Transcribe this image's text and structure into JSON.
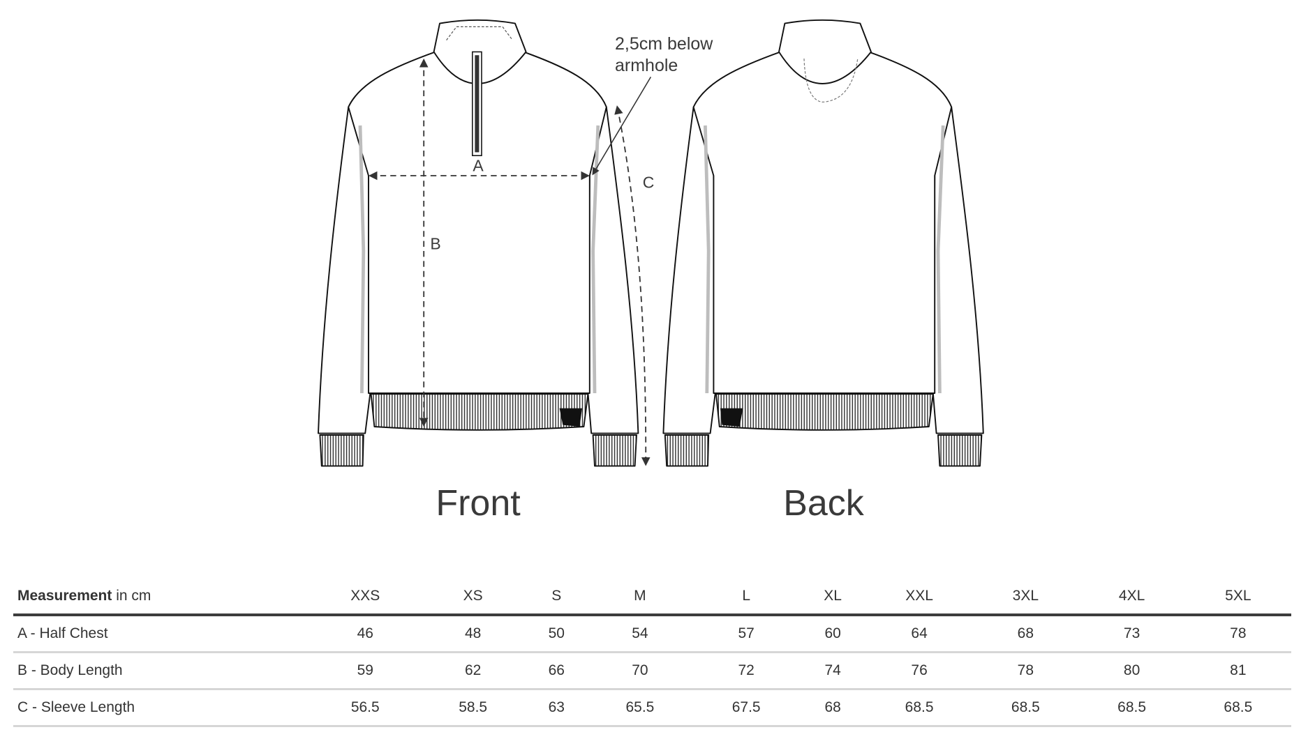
{
  "views": {
    "front_label": "Front",
    "back_label": "Back"
  },
  "annotation": {
    "line1": "2,5cm below",
    "line2": "armhole"
  },
  "measure_markers": {
    "a": "A",
    "b": "B",
    "c": "C"
  },
  "table": {
    "header_bold": "Measurement",
    "header_rest": " in cm",
    "sizes": [
      "XXS",
      "XS",
      "S",
      "M",
      "L",
      "XL",
      "XXL",
      "3XL",
      "4XL",
      "5XL"
    ],
    "rows": [
      {
        "label": "A - Half Chest",
        "values": [
          "46",
          "48",
          "50",
          "54",
          "57",
          "60",
          "64",
          "68",
          "73",
          "78"
        ]
      },
      {
        "label": "B - Body Length",
        "values": [
          "59",
          "62",
          "66",
          "70",
          "72",
          "74",
          "76",
          "78",
          "80",
          "81"
        ]
      },
      {
        "label": "C - Sleeve Length",
        "values": [
          "56.5",
          "58.5",
          "63",
          "65.5",
          "67.5",
          "68",
          "68.5",
          "68.5",
          "68.5",
          "68.5"
        ]
      }
    ]
  },
  "colors": {
    "line": "#1a1a1a",
    "seam_grey": "#bdbdbd",
    "text": "#333333"
  }
}
